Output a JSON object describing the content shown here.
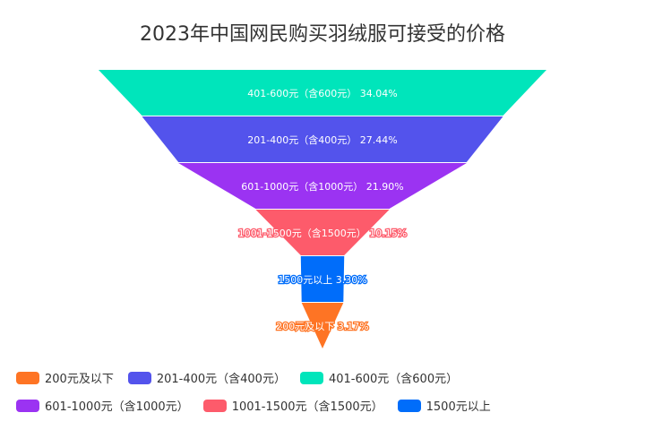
{
  "chart_data": {
    "type": "funnel",
    "title": "2023年中国网民购买羽绒服可接受的价格",
    "unit": "%",
    "series": [
      {
        "name": "401-600元（含600元）",
        "value": 34.04,
        "label": "401-600元（含600元）  34.04%",
        "color": "#00e5bb"
      },
      {
        "name": "201-400元（含400元）",
        "value": 27.44,
        "label": "201-400元（含400元）  27.44%",
        "color": "#5353ec"
      },
      {
        "name": "601-1000元（含1000元）",
        "value": 21.9,
        "label": "601-1000元（含1000元）  21.90%",
        "color": "#9b33f2"
      },
      {
        "name": "1001-1500元（含1500元）",
        "value": 10.15,
        "label": "1001-1500元（含1500元）  10.15%",
        "color": "#fd5b6b"
      },
      {
        "name": "1500元以上",
        "value": 3.3,
        "label": "1500元以上  3.30%",
        "color": "#006dfa"
      },
      {
        "name": "200元及以下",
        "value": 3.17,
        "label": "200元及以下  3.17%",
        "color": "#fe7424"
      }
    ],
    "legend": {
      "position": "bottom-left",
      "items": [
        {
          "label": "200元及以下",
          "color": "#fe7424"
        },
        {
          "label": "201-400元（含400元）",
          "color": "#5353ec"
        },
        {
          "label": "401-600元（含600元）",
          "color": "#00e5bb"
        },
        {
          "label": "601-1000元（含1000元）",
          "color": "#9b33f2"
        },
        {
          "label": "1001-1500元（含1500元）",
          "color": "#fd5b6b"
        },
        {
          "label": "1500元以上",
          "color": "#006dfa"
        }
      ]
    }
  }
}
